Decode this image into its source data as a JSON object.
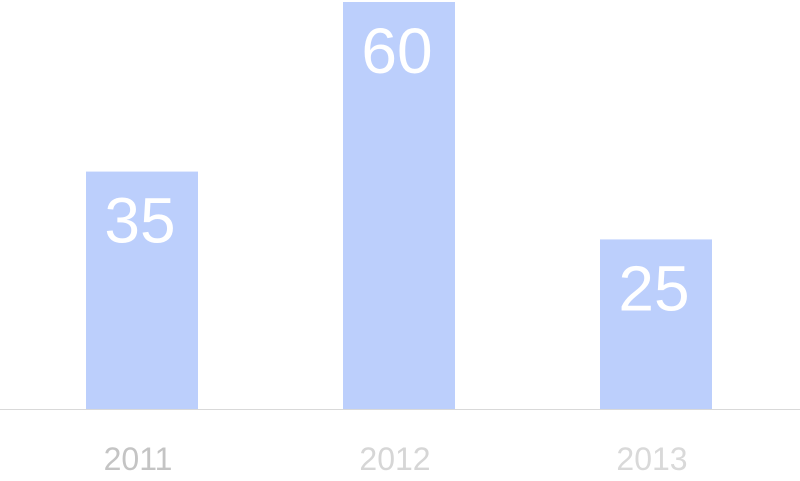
{
  "chart_data": {
    "type": "bar",
    "categories": [
      "2011",
      "2012",
      "2013"
    ],
    "values": [
      35,
      60,
      25
    ],
    "title": "",
    "xlabel": "",
    "ylabel": "",
    "ylim": [
      0,
      60
    ],
    "grid": false,
    "legend": "none",
    "data_labels": [
      "35",
      "60",
      "25"
    ],
    "bar_color": "#bccffc",
    "baseline_color": "#d9d9d9",
    "data_label_color": "#ffffff",
    "tick_label_colors": [
      "#c4c4c4",
      "#d6d6d6",
      "#d9d9d9"
    ]
  }
}
